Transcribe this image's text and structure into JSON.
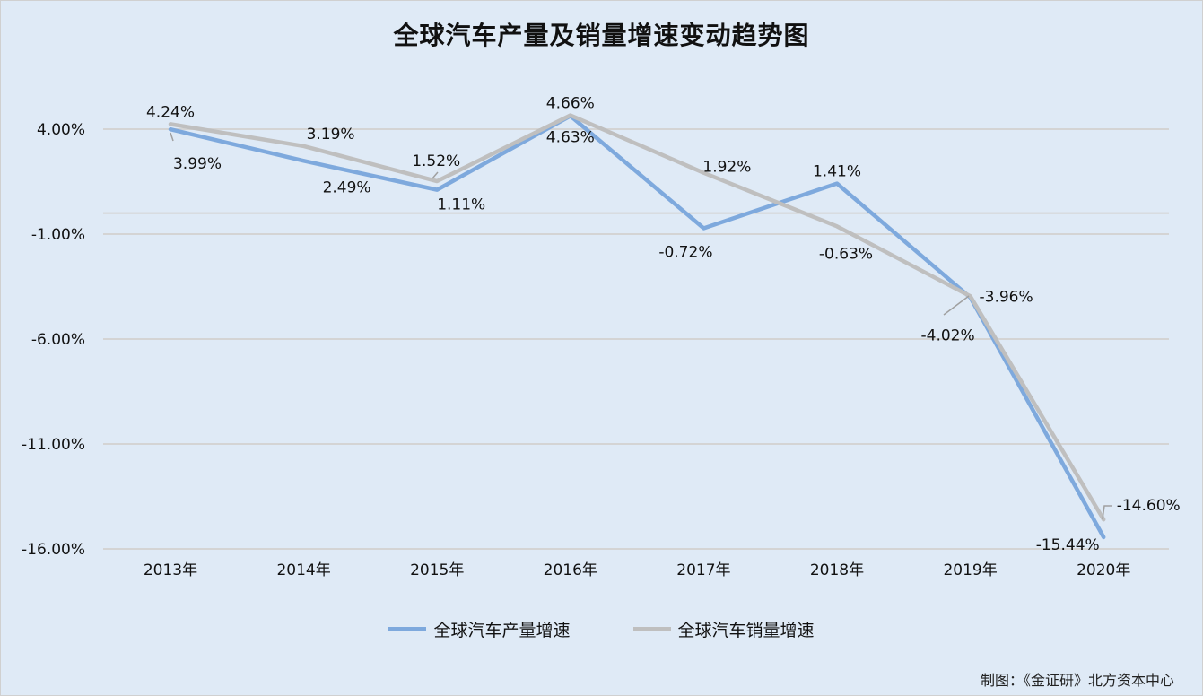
{
  "chart_data": {
    "type": "line",
    "title": "全球汽车产量及销量增速变动趋势图",
    "categories": [
      "2013年",
      "2014年",
      "2015年",
      "2016年",
      "2017年",
      "2018年",
      "2019年",
      "2020年"
    ],
    "series": [
      {
        "name": "全球汽车产量增速",
        "color": "#7ea9dd",
        "values": [
          3.99,
          2.49,
          1.11,
          4.63,
          -0.72,
          1.41,
          -4.02,
          -15.44
        ],
        "labels": [
          "3.99%",
          "2.49%",
          "1.11%",
          "4.63%",
          "-0.72%",
          "1.41%",
          "-4.02%",
          "-15.44%"
        ]
      },
      {
        "name": "全球汽车销量增速",
        "color": "#bfbfbf",
        "values": [
          4.24,
          3.19,
          1.52,
          4.66,
          1.92,
          -0.63,
          -3.96,
          -14.6
        ],
        "labels": [
          "4.24%",
          "3.19%",
          "1.52%",
          "4.66%",
          "1.92%",
          "-0.63%",
          "-3.96%",
          "-14.60%"
        ]
      }
    ],
    "yticks": [
      4,
      -1,
      -6,
      -11,
      -16
    ],
    "ytick_labels": [
      "4.00%",
      "-1.00%",
      "-6.00%",
      "-11.00%",
      "-16.00%"
    ],
    "ylim": [
      -16,
      4
    ],
    "unit": "%",
    "grid": true,
    "legend": "bottom"
  },
  "footer": "制图：《金证研》北方资本中心"
}
